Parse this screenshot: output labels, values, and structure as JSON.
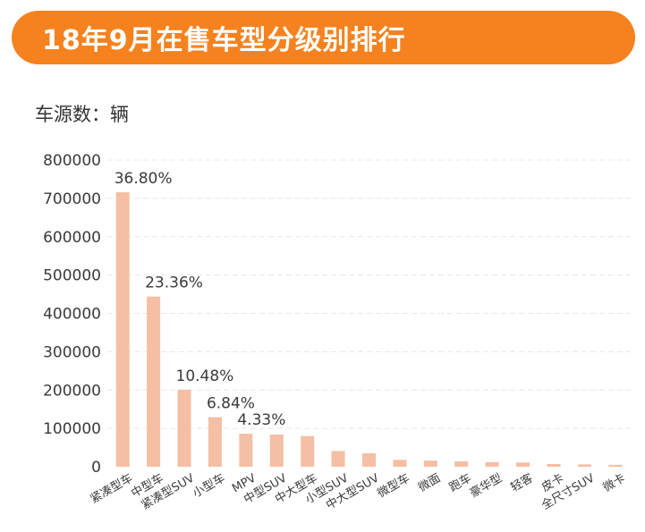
{
  "header": {
    "title": "18年9月在售车型分级别排行",
    "unit_label": "车源数：辆"
  },
  "colors": {
    "header_bg": "#f5821f",
    "bar": "#f4bfa4",
    "grid": "#e8e8e8"
  },
  "chart_data": {
    "type": "bar",
    "title": "18年9月在售车型分级别排行",
    "ylabel": "车源数：辆",
    "xlabel": "",
    "ylim": [
      0,
      800000
    ],
    "yticks": [
      0,
      100000,
      200000,
      300000,
      400000,
      500000,
      600000,
      700000,
      800000
    ],
    "categories": [
      "紧凑型车",
      "中型车",
      "紧凑型SUV",
      "小型车",
      "MPV",
      "中型SUV",
      "中大型车",
      "小型SUV",
      "中大型SUV",
      "微型车",
      "微面",
      "跑车",
      "豪华型",
      "轻客",
      "皮卡",
      "全尺寸SUV",
      "微卡"
    ],
    "values": [
      716000,
      444000,
      201000,
      129000,
      86000,
      84000,
      80000,
      41000,
      35000,
      18000,
      16000,
      14000,
      12000,
      11000,
      7000,
      6000,
      5000
    ],
    "data_labels": [
      "36.80%",
      "23.36%",
      "10.48%",
      "6.84%",
      "4.33%",
      "",
      "",
      "",
      "",
      "",
      "",
      "",
      "",
      "",
      "",
      "",
      ""
    ],
    "grid": true,
    "legend": "none"
  }
}
